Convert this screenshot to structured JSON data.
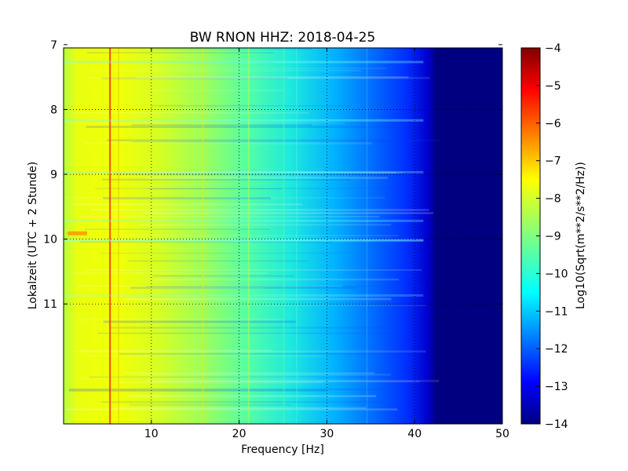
{
  "chart_data": {
    "type": "heatmap",
    "title": "BW RNON HHZ: 2018-04-25",
    "xlabel": "Frequency [Hz]",
    "ylabel": "Lokalzeit (UTC + 2 Stunde)",
    "xlim": [
      0,
      50
    ],
    "ylim": [
      12.85,
      7.05
    ],
    "x_ticks": [
      10,
      20,
      30,
      40,
      50
    ],
    "y_ticks": [
      7,
      8,
      9,
      10,
      11
    ],
    "x_tick_labels": [
      "10",
      "20",
      "30",
      "40",
      "50"
    ],
    "y_tick_labels": [
      "7",
      "8",
      "9",
      "10",
      "11"
    ],
    "grid": true,
    "colormap": "jet",
    "colorbar": {
      "label": "Log10(Sqrt(m**2/s**2/Hz))",
      "range": [
        -14,
        -4
      ],
      "ticks": [
        -4,
        -5,
        -6,
        -7,
        -8,
        -9,
        -10,
        -11,
        -12,
        -13,
        -14
      ],
      "tick_labels": [
        "−4",
        "−5",
        "−6",
        "−7",
        "−8",
        "−9",
        "−10",
        "−11",
        "−12",
        "−13",
        "−14"
      ]
    }
  }
}
